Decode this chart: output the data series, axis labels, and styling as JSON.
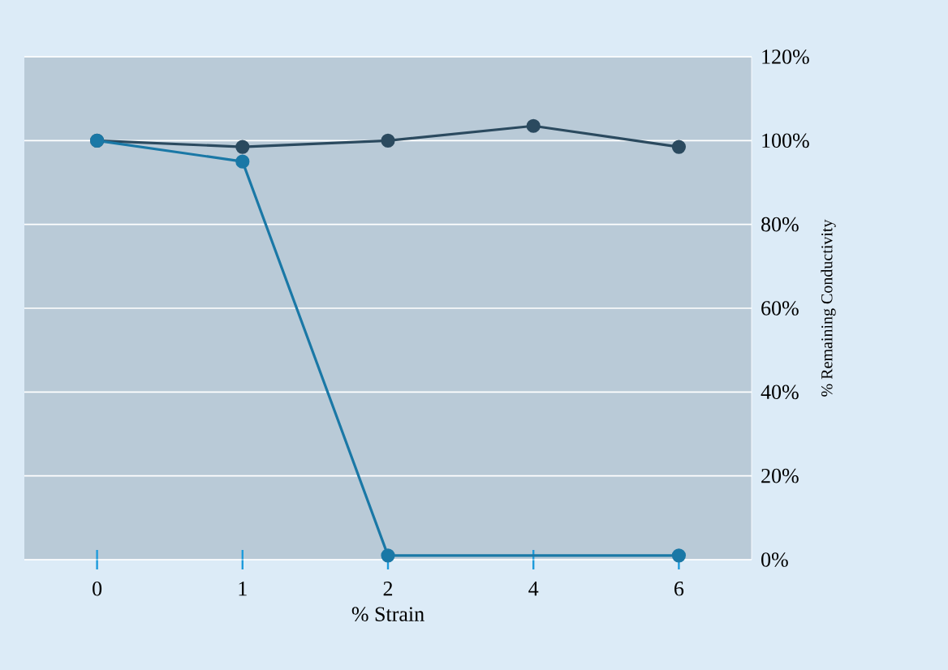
{
  "chart_data": {
    "type": "line",
    "xlabel": "% Strain",
    "ylabel": "% Remaining Conductivity",
    "categories": [
      "0",
      "1",
      "2",
      "4",
      "6"
    ],
    "series": [
      {
        "color": "#2b4a5f",
        "values": [
          100,
          98.5,
          100,
          103.5,
          98.5
        ]
      },
      {
        "color": "#1a78a6",
        "values": [
          100,
          95,
          1,
          null,
          1
        ]
      }
    ],
    "ylim": [
      0,
      120
    ],
    "yticks": [
      {
        "value": 0,
        "label": "0%"
      },
      {
        "value": 20,
        "label": "20%"
      },
      {
        "value": 40,
        "label": "40%"
      },
      {
        "value": 60,
        "label": "60%"
      },
      {
        "value": 80,
        "label": "80%"
      },
      {
        "value": 100,
        "label": "100%"
      },
      {
        "value": 120,
        "label": "120%"
      }
    ],
    "grid": "y",
    "marker": "circle",
    "line_style": "solid"
  }
}
